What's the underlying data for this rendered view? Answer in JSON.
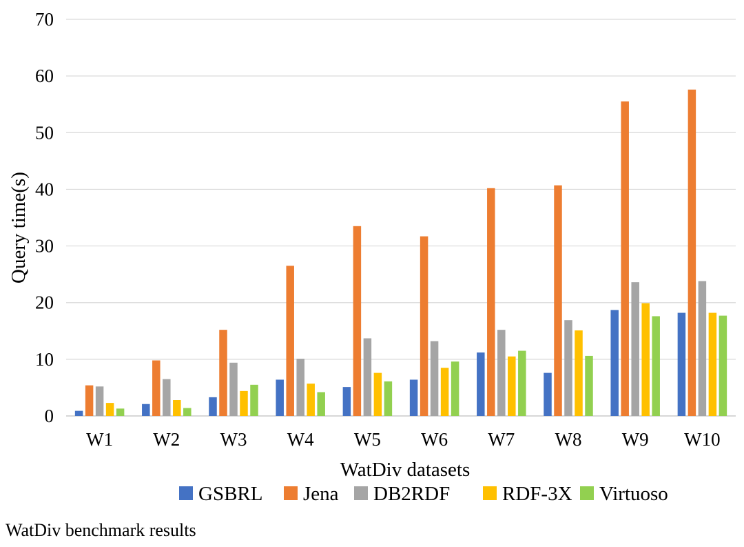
{
  "chart_data": {
    "type": "bar",
    "title": "",
    "xlabel": "WatDiv datasets",
    "ylabel": "Query time(s)",
    "ylim": [
      0,
      70
    ],
    "yticks": [
      0,
      10,
      20,
      30,
      40,
      50,
      60,
      70
    ],
    "grid": true,
    "legend_position": "bottom",
    "categories": [
      "W1",
      "W2",
      "W3",
      "W4",
      "W5",
      "W6",
      "W7",
      "W8",
      "W9",
      "W10"
    ],
    "series": [
      {
        "name": "GSBRL",
        "color": "#4472C4",
        "values": [
          0.9,
          2.1,
          3.3,
          6.4,
          5.1,
          6.4,
          11.2,
          7.6,
          18.7,
          18.2
        ]
      },
      {
        "name": "Jena",
        "color": "#ED7D31",
        "values": [
          5.4,
          9.8,
          15.2,
          26.5,
          33.5,
          31.7,
          40.2,
          40.7,
          55.5,
          57.6
        ]
      },
      {
        "name": "DB2RDF",
        "color": "#A5A5A5",
        "values": [
          5.2,
          6.5,
          9.4,
          10.1,
          13.7,
          13.2,
          15.2,
          16.9,
          23.6,
          23.8
        ]
      },
      {
        "name": "RDF-3X",
        "color": "#FFC000",
        "values": [
          2.3,
          2.8,
          4.4,
          5.7,
          7.6,
          8.5,
          10.5,
          15.1,
          19.9,
          18.2
        ]
      },
      {
        "name": "Virtuoso",
        "color": "#92D050",
        "values": [
          1.3,
          1.4,
          5.5,
          4.2,
          6.1,
          9.6,
          11.5,
          10.6,
          17.6,
          17.7
        ]
      }
    ]
  },
  "caption": "WatDiv benchmark results"
}
